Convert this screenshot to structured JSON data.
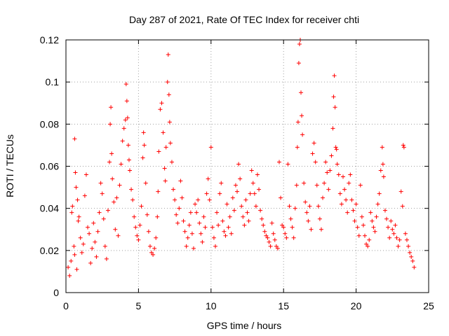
{
  "chart_data": {
    "type": "scatter",
    "title": "Day 287 of 2021, Rate Of TEC Index for receiver chti",
    "xlabel": "GPS time / hours",
    "ylabel": "ROTI / TECUs",
    "xlim": [
      0,
      25
    ],
    "ylim": [
      0,
      0.12
    ],
    "xticks": [
      0,
      5,
      10,
      15,
      20,
      25
    ],
    "xtick_labels": [
      "0",
      "5",
      "10",
      "15",
      "20",
      "25"
    ],
    "yticks": [
      0,
      0.02,
      0.04,
      0.06,
      0.08,
      0.1,
      0.12
    ],
    "ytick_labels": [
      "0",
      "0.02",
      "0.04",
      "0.06",
      "0.08",
      "0.1",
      "0.12"
    ],
    "grid": true,
    "marker": "+",
    "color": "#ff0000",
    "series": [
      {
        "name": "ROTI",
        "points": [
          [
            0.15,
            0.012
          ],
          [
            0.25,
            0.008
          ],
          [
            0.35,
            0.015
          ],
          [
            0.4,
            0.038
          ],
          [
            0.45,
            0.041
          ],
          [
            0.55,
            0.022
          ],
          [
            0.6,
            0.018
          ],
          [
            0.75,
            0.011
          ],
          [
            0.6,
            0.073
          ],
          [
            0.65,
            0.057
          ],
          [
            0.7,
            0.05
          ],
          [
            0.8,
            0.044
          ],
          [
            0.85,
            0.034
          ],
          [
            0.9,
            0.036
          ],
          [
            1.0,
            0.026
          ],
          [
            1.1,
            0.019
          ],
          [
            1.2,
            0.023
          ],
          [
            1.3,
            0.046
          ],
          [
            1.4,
            0.056
          ],
          [
            1.5,
            0.031
          ],
          [
            1.6,
            0.028
          ],
          [
            1.7,
            0.014
          ],
          [
            1.8,
            0.021
          ],
          [
            1.9,
            0.033
          ],
          [
            2.0,
            0.024
          ],
          [
            2.1,
            0.017
          ],
          [
            2.2,
            0.029
          ],
          [
            2.3,
            0.038
          ],
          [
            2.4,
            0.052
          ],
          [
            2.5,
            0.047
          ],
          [
            2.6,
            0.035
          ],
          [
            2.7,
            0.022
          ],
          [
            2.8,
            0.016
          ],
          [
            2.9,
            0.039
          ],
          [
            3.0,
            0.062
          ],
          [
            3.05,
            0.08
          ],
          [
            3.1,
            0.088
          ],
          [
            3.15,
            0.066
          ],
          [
            3.2,
            0.054
          ],
          [
            3.3,
            0.043
          ],
          [
            3.4,
            0.03
          ],
          [
            3.5,
            0.045
          ],
          [
            3.6,
            0.027
          ],
          [
            3.7,
            0.051
          ],
          [
            3.8,
            0.061
          ],
          [
            3.9,
            0.072
          ],
          [
            4.0,
            0.078
          ],
          [
            4.1,
            0.082
          ],
          [
            4.15,
            0.099
          ],
          [
            4.2,
            0.091
          ],
          [
            4.25,
            0.083
          ],
          [
            4.3,
            0.07
          ],
          [
            4.35,
            0.063
          ],
          [
            4.4,
            0.058
          ],
          [
            4.5,
            0.049
          ],
          [
            4.6,
            0.044
          ],
          [
            4.7,
            0.036
          ],
          [
            4.8,
            0.031
          ],
          [
            4.9,
            0.027
          ],
          [
            5.0,
            0.025
          ],
          [
            5.1,
            0.032
          ],
          [
            5.2,
            0.041
          ],
          [
            5.3,
            0.064
          ],
          [
            5.35,
            0.076
          ],
          [
            5.4,
            0.07
          ],
          [
            5.5,
            0.052
          ],
          [
            5.6,
            0.037
          ],
          [
            5.7,
            0.029
          ],
          [
            5.8,
            0.022
          ],
          [
            5.9,
            0.019
          ],
          [
            6.0,
            0.018
          ],
          [
            6.1,
            0.021
          ],
          [
            6.2,
            0.026
          ],
          [
            6.3,
            0.036
          ],
          [
            6.35,
            0.048
          ],
          [
            6.4,
            0.067
          ],
          [
            6.5,
            0.087
          ],
          [
            6.6,
            0.09
          ],
          [
            6.7,
            0.076
          ],
          [
            6.8,
            0.059
          ],
          [
            6.85,
            0.053
          ],
          [
            6.9,
            0.069
          ],
          [
            7.0,
            0.1
          ],
          [
            7.05,
            0.113
          ],
          [
            7.1,
            0.094
          ],
          [
            7.15,
            0.081
          ],
          [
            7.2,
            0.071
          ],
          [
            7.3,
            0.062
          ],
          [
            7.4,
            0.049
          ],
          [
            7.5,
            0.044
          ],
          [
            7.6,
            0.037
          ],
          [
            7.7,
            0.033
          ],
          [
            7.8,
            0.04
          ],
          [
            7.9,
            0.053
          ],
          [
            8.0,
            0.045
          ],
          [
            8.1,
            0.034
          ],
          [
            8.2,
            0.029
          ],
          [
            8.3,
            0.022
          ],
          [
            8.4,
            0.026
          ],
          [
            8.5,
            0.032
          ],
          [
            8.6,
            0.038
          ],
          [
            8.7,
            0.028
          ],
          [
            8.8,
            0.021
          ],
          [
            8.9,
            0.042
          ],
          [
            9.0,
            0.038
          ],
          [
            9.1,
            0.044
          ],
          [
            9.2,
            0.033
          ],
          [
            9.3,
            0.028
          ],
          [
            9.4,
            0.024
          ],
          [
            9.5,
            0.036
          ],
          [
            9.6,
            0.031
          ],
          [
            9.7,
            0.047
          ],
          [
            9.8,
            0.054
          ],
          [
            9.9,
            0.044
          ],
          [
            10.0,
            0.069
          ],
          [
            10.1,
            0.031
          ],
          [
            10.2,
            0.026
          ],
          [
            10.3,
            0.022
          ],
          [
            10.4,
            0.038
          ],
          [
            10.5,
            0.032
          ],
          [
            10.6,
            0.047
          ],
          [
            10.7,
            0.052
          ],
          [
            10.8,
            0.034
          ],
          [
            10.9,
            0.029
          ],
          [
            11.0,
            0.027
          ],
          [
            11.1,
            0.042
          ],
          [
            11.2,
            0.031
          ],
          [
            11.3,
            0.036
          ],
          [
            11.4,
            0.028
          ],
          [
            11.5,
            0.045
          ],
          [
            11.6,
            0.039
          ],
          [
            11.7,
            0.051
          ],
          [
            11.8,
            0.048
          ],
          [
            11.9,
            0.061
          ],
          [
            12.0,
            0.054
          ],
          [
            12.1,
            0.041
          ],
          [
            12.2,
            0.036
          ],
          [
            12.3,
            0.032
          ],
          [
            12.4,
            0.044
          ],
          [
            12.5,
            0.038
          ],
          [
            12.6,
            0.034
          ],
          [
            12.7,
            0.047
          ],
          [
            12.8,
            0.058
          ],
          [
            12.9,
            0.052
          ],
          [
            13.0,
            0.047
          ],
          [
            13.1,
            0.041
          ],
          [
            13.2,
            0.056
          ],
          [
            13.3,
            0.049
          ],
          [
            13.4,
            0.039
          ],
          [
            13.5,
            0.035
          ],
          [
            13.6,
            0.032
          ],
          [
            13.7,
            0.029
          ],
          [
            13.8,
            0.027
          ],
          [
            13.9,
            0.026
          ],
          [
            14.0,
            0.024
          ],
          [
            14.1,
            0.022
          ],
          [
            14.2,
            0.033
          ],
          [
            14.3,
            0.028
          ],
          [
            14.4,
            0.025
          ],
          [
            14.5,
            0.022
          ],
          [
            14.6,
            0.021
          ],
          [
            14.7,
            0.062
          ],
          [
            14.8,
            0.045
          ],
          [
            14.9,
            0.032
          ],
          [
            15.0,
            0.031
          ],
          [
            15.1,
            0.028
          ],
          [
            15.2,
            0.026
          ],
          [
            15.3,
            0.061
          ],
          [
            15.4,
            0.041
          ],
          [
            15.5,
            0.035
          ],
          [
            15.6,
            0.031
          ],
          [
            15.7,
            0.026
          ],
          [
            15.8,
            0.04
          ],
          [
            15.9,
            0.051
          ],
          [
            15.95,
            0.069
          ],
          [
            16.0,
            0.081
          ],
          [
            16.05,
            0.109
          ],
          [
            16.1,
            0.118
          ],
          [
            16.15,
            0.12
          ],
          [
            16.2,
            0.095
          ],
          [
            16.25,
            0.084
          ],
          [
            16.3,
            0.075
          ],
          [
            16.4,
            0.052
          ],
          [
            16.5,
            0.043
          ],
          [
            16.6,
            0.038
          ],
          [
            16.7,
            0.034
          ],
          [
            16.8,
            0.041
          ],
          [
            16.9,
            0.03
          ],
          [
            17.0,
            0.066
          ],
          [
            17.1,
            0.071
          ],
          [
            17.2,
            0.062
          ],
          [
            17.3,
            0.051
          ],
          [
            17.4,
            0.041
          ],
          [
            17.5,
            0.035
          ],
          [
            17.6,
            0.03
          ],
          [
            17.7,
            0.045
          ],
          [
            17.8,
            0.052
          ],
          [
            17.9,
            0.062
          ],
          [
            18.0,
            0.057
          ],
          [
            18.1,
            0.049
          ],
          [
            18.2,
            0.058
          ],
          [
            18.3,
            0.065
          ],
          [
            18.4,
            0.078
          ],
          [
            18.45,
            0.093
          ],
          [
            18.5,
            0.103
          ],
          [
            18.55,
            0.088
          ],
          [
            18.6,
            0.069
          ],
          [
            18.65,
            0.068
          ],
          [
            18.7,
            0.061
          ],
          [
            18.8,
            0.056
          ],
          [
            18.9,
            0.047
          ],
          [
            19.0,
            0.042
          ],
          [
            19.1,
            0.055
          ],
          [
            19.2,
            0.049
          ],
          [
            19.3,
            0.044
          ],
          [
            19.4,
            0.038
          ],
          [
            19.5,
            0.052
          ],
          [
            19.6,
            0.056
          ],
          [
            19.7,
            0.044
          ],
          [
            19.8,
            0.039
          ],
          [
            19.9,
            0.034
          ],
          [
            20.0,
            0.042
          ],
          [
            20.1,
            0.031
          ],
          [
            20.2,
            0.027
          ],
          [
            20.3,
            0.051
          ],
          [
            20.4,
            0.036
          ],
          [
            20.5,
            0.032
          ],
          [
            20.6,
            0.027
          ],
          [
            20.7,
            0.023
          ],
          [
            20.8,
            0.022
          ],
          [
            20.9,
            0.025
          ],
          [
            21.0,
            0.038
          ],
          [
            21.1,
            0.034
          ],
          [
            21.2,
            0.031
          ],
          [
            21.3,
            0.029
          ],
          [
            21.4,
            0.036
          ],
          [
            21.5,
            0.042
          ],
          [
            21.6,
            0.047
          ],
          [
            21.7,
            0.058
          ],
          [
            21.8,
            0.069
          ],
          [
            21.85,
            0.061
          ],
          [
            21.9,
            0.055
          ],
          [
            22.0,
            0.039
          ],
          [
            22.1,
            0.035
          ],
          [
            22.2,
            0.031
          ],
          [
            22.3,
            0.026
          ],
          [
            22.4,
            0.034
          ],
          [
            22.5,
            0.03
          ],
          [
            22.6,
            0.028
          ],
          [
            22.7,
            0.032
          ],
          [
            22.8,
            0.026
          ],
          [
            22.9,
            0.022
          ],
          [
            23.0,
            0.025
          ],
          [
            23.1,
            0.048
          ],
          [
            23.2,
            0.041
          ],
          [
            23.25,
            0.07
          ],
          [
            23.3,
            0.069
          ],
          [
            23.4,
            0.028
          ],
          [
            23.5,
            0.025
          ],
          [
            23.6,
            0.022
          ],
          [
            23.7,
            0.019
          ],
          [
            23.8,
            0.017
          ],
          [
            23.9,
            0.015
          ],
          [
            24.0,
            0.012
          ]
        ]
      }
    ]
  }
}
